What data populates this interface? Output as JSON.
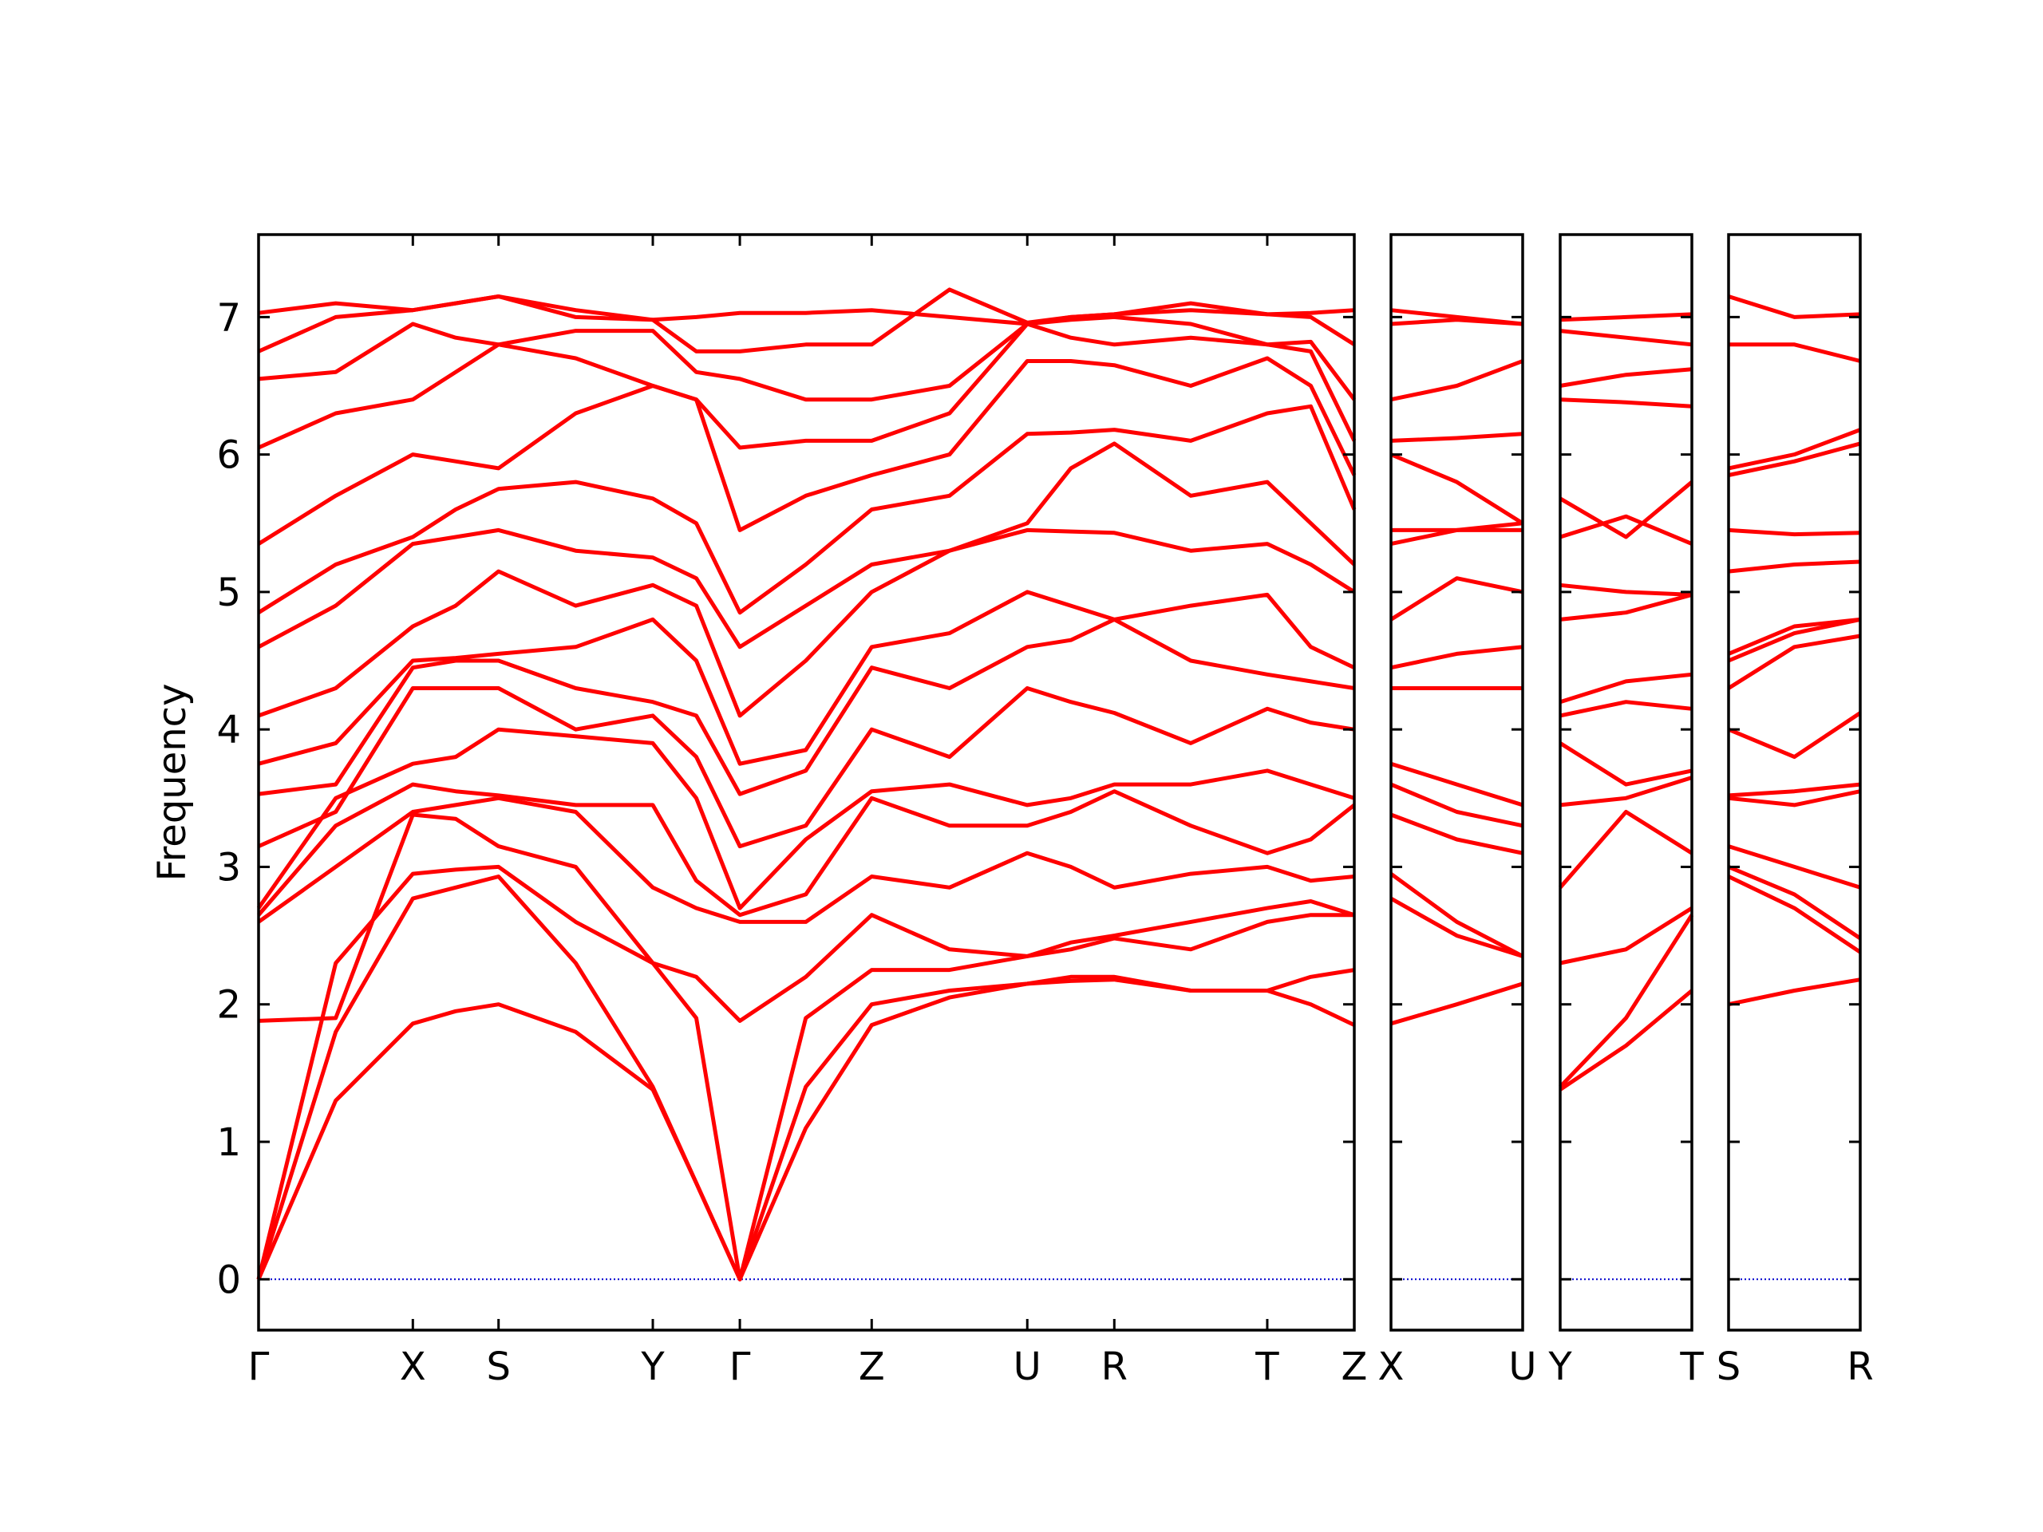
{
  "chart_data": [
    {
      "type": "line",
      "ylabel": "Frequency",
      "color": "#ff0000",
      "line_width": 5,
      "zero_line": 0,
      "zero_line_color": "#0000cd",
      "ytick_labels": true,
      "xlim": [
        0,
        8.31
      ],
      "ylim": [
        -0.37,
        7.6
      ],
      "yticks": [
        0,
        1,
        2,
        3,
        4,
        5,
        6,
        7
      ],
      "xticks": [
        {
          "value": 0,
          "label": "Γ"
        },
        {
          "value": 1.17,
          "label": "X"
        },
        {
          "value": 1.82,
          "label": "S"
        },
        {
          "value": 2.99,
          "label": "Y"
        },
        {
          "value": 3.65,
          "label": "Γ"
        },
        {
          "value": 4.65,
          "label": "Z"
        },
        {
          "value": 5.83,
          "label": "U"
        },
        {
          "value": 6.49,
          "label": "R"
        },
        {
          "value": 7.65,
          "label": "T"
        },
        {
          "value": 8.31,
          "label": "Z"
        }
      ],
      "x": [
        0,
        0.585,
        1.17,
        1.495,
        1.82,
        2.405,
        2.99,
        3.32,
        3.65,
        4.15,
        4.65,
        5.24,
        5.83,
        6.16,
        6.49,
        7.07,
        7.65,
        7.98,
        8.31
      ],
      "bands": [
        [
          0,
          1.3,
          1.86,
          1.95,
          2.0,
          1.8,
          1.38,
          0.7,
          0,
          1.1,
          1.85,
          2.05,
          2.15,
          2.17,
          2.18,
          2.1,
          2.1,
          2.0,
          1.85
        ],
        [
          0,
          1.8,
          2.77,
          2.85,
          2.93,
          2.3,
          1.4,
          0.7,
          0,
          1.4,
          2.0,
          2.1,
          2.15,
          2.2,
          2.2,
          2.1,
          2.1,
          2.2,
          2.25
        ],
        [
          0,
          2.3,
          2.95,
          2.98,
          3.0,
          2.6,
          2.3,
          1.9,
          0,
          1.9,
          2.25,
          2.25,
          2.35,
          2.4,
          2.48,
          2.4,
          2.6,
          2.65,
          2.65
        ],
        [
          1.88,
          1.9,
          3.38,
          3.35,
          3.15,
          3.0,
          2.3,
          2.2,
          1.88,
          2.2,
          2.65,
          2.4,
          2.35,
          2.45,
          2.5,
          2.6,
          2.7,
          2.75,
          2.65
        ],
        [
          2.6,
          3.0,
          3.4,
          3.45,
          3.5,
          3.4,
          2.85,
          2.7,
          2.6,
          2.6,
          2.93,
          2.85,
          3.1,
          3.0,
          2.85,
          2.95,
          3.0,
          2.9,
          2.93
        ],
        [
          2.65,
          3.3,
          3.6,
          3.55,
          3.52,
          3.45,
          3.45,
          2.9,
          2.65,
          2.8,
          3.5,
          3.3,
          3.3,
          3.4,
          3.55,
          3.3,
          3.1,
          3.2,
          3.45
        ],
        [
          2.7,
          3.5,
          3.75,
          3.8,
          4.0,
          3.95,
          3.9,
          3.5,
          2.7,
          3.2,
          3.55,
          3.6,
          3.45,
          3.5,
          3.6,
          3.6,
          3.7,
          3.6,
          3.5
        ],
        [
          3.15,
          3.4,
          4.3,
          4.3,
          4.3,
          4.0,
          4.1,
          3.8,
          3.15,
          3.3,
          4.0,
          3.8,
          4.3,
          4.2,
          4.12,
          3.9,
          4.15,
          4.05,
          4.0
        ],
        [
          3.53,
          3.6,
          4.45,
          4.5,
          4.5,
          4.3,
          4.2,
          4.1,
          3.53,
          3.7,
          4.45,
          4.3,
          4.6,
          4.65,
          4.8,
          4.5,
          4.4,
          4.35,
          4.3
        ],
        [
          3.75,
          3.9,
          4.5,
          4.52,
          4.55,
          4.6,
          4.8,
          4.5,
          3.75,
          3.85,
          4.6,
          4.7,
          5.0,
          4.9,
          4.8,
          4.9,
          4.98,
          4.6,
          4.45
        ],
        [
          4.1,
          4.3,
          4.75,
          4.9,
          5.15,
          4.9,
          5.05,
          4.9,
          4.1,
          4.5,
          5.0,
          5.3,
          5.45,
          5.44,
          5.43,
          5.3,
          5.35,
          5.2,
          5.0
        ],
        [
          4.6,
          4.9,
          5.35,
          5.4,
          5.45,
          5.3,
          5.25,
          5.1,
          4.6,
          4.9,
          5.2,
          5.3,
          5.5,
          5.9,
          6.08,
          5.7,
          5.8,
          5.5,
          5.2
        ],
        [
          4.85,
          5.2,
          5.4,
          5.6,
          5.75,
          5.8,
          5.68,
          5.5,
          4.85,
          5.2,
          5.6,
          5.7,
          6.15,
          6.16,
          6.18,
          6.1,
          6.3,
          6.35,
          5.6
        ],
        [
          5.35,
          5.7,
          6.0,
          5.95,
          5.9,
          6.3,
          6.5,
          6.4,
          5.45,
          5.7,
          5.85,
          6.0,
          6.68,
          6.68,
          6.65,
          6.5,
          6.7,
          6.5,
          5.85
        ],
        [
          6.05,
          6.3,
          6.4,
          6.6,
          6.8,
          6.7,
          6.5,
          6.4,
          6.05,
          6.1,
          6.1,
          6.3,
          6.95,
          6.85,
          6.8,
          6.85,
          6.8,
          6.75,
          6.1
        ],
        [
          6.55,
          6.6,
          6.95,
          6.85,
          6.8,
          6.9,
          6.9,
          6.6,
          6.55,
          6.4,
          6.4,
          6.5,
          6.95,
          6.98,
          7.0,
          6.95,
          6.8,
          6.82,
          6.4
        ],
        [
          6.75,
          7.0,
          7.05,
          7.1,
          7.15,
          7.05,
          6.98,
          6.75,
          6.75,
          6.8,
          6.8,
          7.2,
          6.96,
          7.0,
          7.02,
          7.1,
          7.02,
          7.0,
          6.8
        ],
        [
          7.03,
          7.1,
          7.05,
          7.1,
          7.15,
          7.0,
          6.98,
          7.0,
          7.03,
          7.03,
          7.05,
          7.0,
          6.95,
          7.0,
          7.02,
          7.05,
          7.02,
          7.03,
          7.05
        ]
      ]
    },
    {
      "type": "line",
      "color": "#ff0000",
      "line_width": 5,
      "zero_line": 0,
      "zero_line_color": "#0000cd",
      "ytick_labels": false,
      "xlim": [
        0,
        1
      ],
      "ylim": [
        -0.37,
        7.6
      ],
      "yticks": [
        0,
        1,
        2,
        3,
        4,
        5,
        6,
        7
      ],
      "xticks": [
        {
          "value": 0,
          "label": "X"
        },
        {
          "value": 1,
          "label": "U"
        }
      ],
      "x": [
        0,
        0.5,
        1
      ],
      "bands": [
        [
          1.86,
          2.0,
          2.15
        ],
        [
          2.77,
          2.5,
          2.35
        ],
        [
          2.95,
          2.6,
          2.35
        ],
        [
          3.38,
          3.2,
          3.1
        ],
        [
          3.6,
          3.4,
          3.3
        ],
        [
          3.75,
          3.6,
          3.45
        ],
        [
          4.3,
          4.3,
          4.3
        ],
        [
          4.45,
          4.55,
          4.6
        ],
        [
          4.8,
          5.1,
          5.0
        ],
        [
          5.35,
          5.45,
          5.45
        ],
        [
          5.45,
          5.45,
          5.5
        ],
        [
          6.0,
          5.8,
          5.5
        ],
        [
          6.1,
          6.12,
          6.15
        ],
        [
          6.4,
          6.5,
          6.68
        ],
        [
          6.95,
          6.98,
          6.95
        ],
        [
          7.05,
          7.0,
          6.95
        ]
      ]
    },
    {
      "type": "line",
      "color": "#ff0000",
      "line_width": 5,
      "zero_line": 0,
      "zero_line_color": "#0000cd",
      "ytick_labels": false,
      "xlim": [
        0,
        1
      ],
      "ylim": [
        -0.37,
        7.6
      ],
      "yticks": [
        0,
        1,
        2,
        3,
        4,
        5,
        6,
        7
      ],
      "xticks": [
        {
          "value": 0,
          "label": "Y"
        },
        {
          "value": 1,
          "label": "T"
        }
      ],
      "x": [
        0,
        0.5,
        1
      ],
      "bands": [
        [
          1.38,
          1.7,
          2.1
        ],
        [
          1.4,
          1.9,
          2.65
        ],
        [
          2.3,
          2.4,
          2.7
        ],
        [
          2.85,
          3.4,
          3.1
        ],
        [
          3.45,
          3.5,
          3.65
        ],
        [
          3.9,
          3.6,
          3.7
        ],
        [
          4.1,
          4.2,
          4.15
        ],
        [
          4.2,
          4.35,
          4.4
        ],
        [
          4.8,
          4.85,
          4.98
        ],
        [
          5.05,
          5.0,
          4.98
        ],
        [
          5.4,
          5.55,
          5.35
        ],
        [
          5.68,
          5.4,
          5.8
        ],
        [
          6.4,
          6.38,
          6.35
        ],
        [
          6.5,
          6.58,
          6.62
        ],
        [
          6.9,
          6.85,
          6.8
        ],
        [
          6.98,
          7.0,
          7.02
        ]
      ]
    },
    {
      "type": "line",
      "color": "#ff0000",
      "line_width": 5,
      "zero_line": 0,
      "zero_line_color": "#0000cd",
      "ytick_labels": false,
      "xlim": [
        0,
        1
      ],
      "ylim": [
        -0.37,
        7.6
      ],
      "yticks": [
        0,
        1,
        2,
        3,
        4,
        5,
        6,
        7
      ],
      "xticks": [
        {
          "value": 0,
          "label": "S"
        },
        {
          "value": 1,
          "label": "R"
        }
      ],
      "x": [
        0,
        0.5,
        1
      ],
      "bands": [
        [
          2.0,
          2.1,
          2.18
        ],
        [
          2.93,
          2.7,
          2.38
        ],
        [
          3.0,
          2.8,
          2.48
        ],
        [
          3.15,
          3.0,
          2.85
        ],
        [
          3.5,
          3.45,
          3.55
        ],
        [
          3.52,
          3.55,
          3.6
        ],
        [
          4.0,
          3.8,
          4.12
        ],
        [
          4.3,
          4.6,
          4.68
        ],
        [
          4.5,
          4.7,
          4.8
        ],
        [
          4.55,
          4.75,
          4.8
        ],
        [
          5.15,
          5.2,
          5.22
        ],
        [
          5.45,
          5.42,
          5.43
        ],
        [
          5.85,
          5.95,
          6.08
        ],
        [
          5.9,
          6.0,
          6.18
        ],
        [
          6.8,
          6.8,
          6.68
        ],
        [
          7.15,
          7.0,
          7.02
        ]
      ]
    }
  ]
}
